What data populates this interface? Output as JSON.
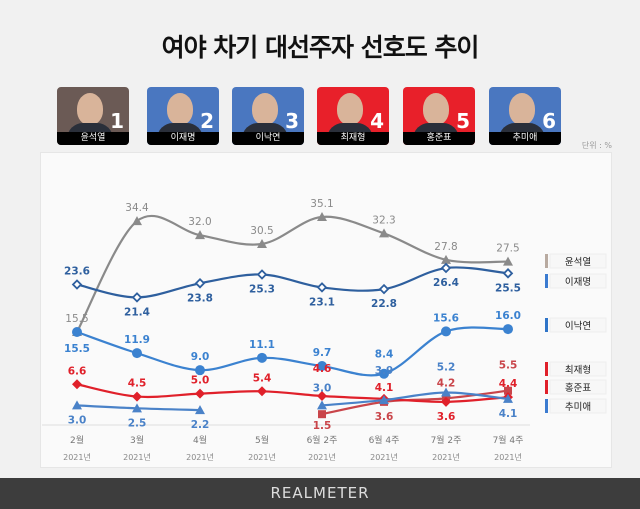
{
  "title": "여야 차기 대선주자 선호도 추이",
  "unit": "단위 : %",
  "candidates": [
    {
      "rank": "1",
      "name": "윤석열",
      "color": "#6b5a55"
    },
    {
      "rank": "2",
      "name": "이재명",
      "color": "#4a77c0"
    },
    {
      "rank": "3",
      "name": "이낙연",
      "color": "#4a77c0"
    },
    {
      "rank": "4",
      "name": "최재형",
      "color": "#e8202a"
    },
    {
      "rank": "5",
      "name": "홍준표",
      "color": "#e8202a"
    },
    {
      "rank": "6",
      "name": "추미애",
      "color": "#4a77c0"
    }
  ],
  "footer": "REALMETER",
  "chart_data": {
    "type": "line",
    "title": "여야 차기 대선주자 선호도 추이",
    "ylabel": "%",
    "categories": [
      "2월",
      "3월",
      "4월",
      "5월",
      "6월 2주",
      "6월 4주",
      "7월 2주",
      "7월 4주"
    ],
    "years": [
      "2021년",
      "2021년",
      "2021년",
      "2021년",
      "2021년",
      "2021년",
      "2021년",
      "2021년"
    ],
    "ylim": [
      0,
      36
    ],
    "legend_position": "right",
    "series": [
      {
        "name": "윤석열",
        "color": "#8a8a8a",
        "legend_color": "#b8aaa0",
        "marker": "triangle",
        "values": [
          15.5,
          34.4,
          32.0,
          30.5,
          35.1,
          32.3,
          27.8,
          27.5
        ]
      },
      {
        "name": "이재명",
        "color": "#2e5f9e",
        "legend_color": "#3b7bd0",
        "marker": "diamond-open",
        "values": [
          23.6,
          21.4,
          23.8,
          25.3,
          23.1,
          22.8,
          26.4,
          25.5
        ]
      },
      {
        "name": "이낙연",
        "color": "#3b82d0",
        "legend_color": "#2f74c8",
        "marker": "circle",
        "values": [
          15.5,
          11.9,
          9.0,
          11.1,
          9.7,
          8.4,
          15.6,
          16.0
        ]
      },
      {
        "name": "최재형",
        "color": "#c9454a",
        "legend_color": "#e0202a",
        "marker": "square",
        "values": [
          null,
          null,
          null,
          null,
          1.5,
          3.6,
          4.2,
          5.5
        ]
      },
      {
        "name": "홍준표",
        "color": "#e0202a",
        "legend_color": "#e0202a",
        "marker": "diamond",
        "values": [
          6.6,
          4.5,
          5.0,
          5.4,
          4.6,
          4.1,
          3.6,
          4.4
        ]
      },
      {
        "name": "추미애",
        "color": "#4a82c8",
        "legend_color": "#3b7bd0",
        "marker": "triangle",
        "values": [
          3.0,
          2.5,
          2.2,
          null,
          3.0,
          3.9,
          5.2,
          4.1
        ]
      }
    ]
  }
}
